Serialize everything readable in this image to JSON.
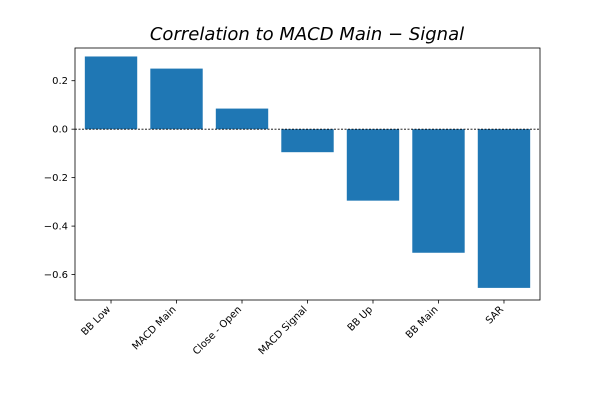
{
  "chart_data": {
    "type": "bar",
    "title": "Correlation to MACD Main − Signal",
    "xlabel": "",
    "ylabel": "",
    "categories": [
      "BB Low",
      "MACD Main",
      "Close - Open",
      "MACD Signal",
      "BB Up",
      "BB Main",
      "SAR"
    ],
    "values": [
      0.3,
      0.25,
      0.085,
      -0.095,
      -0.295,
      -0.51,
      -0.655
    ],
    "ylim": [
      -0.705,
      0.335
    ],
    "yticks": [
      0.2,
      0.0,
      -0.2,
      -0.4,
      -0.6
    ],
    "ytick_labels": [
      "0.2",
      "0.0",
      "−0.2",
      "−0.4",
      "−0.6"
    ],
    "bar_color": "#1f77b4",
    "zero_line": true,
    "grid": false
  }
}
